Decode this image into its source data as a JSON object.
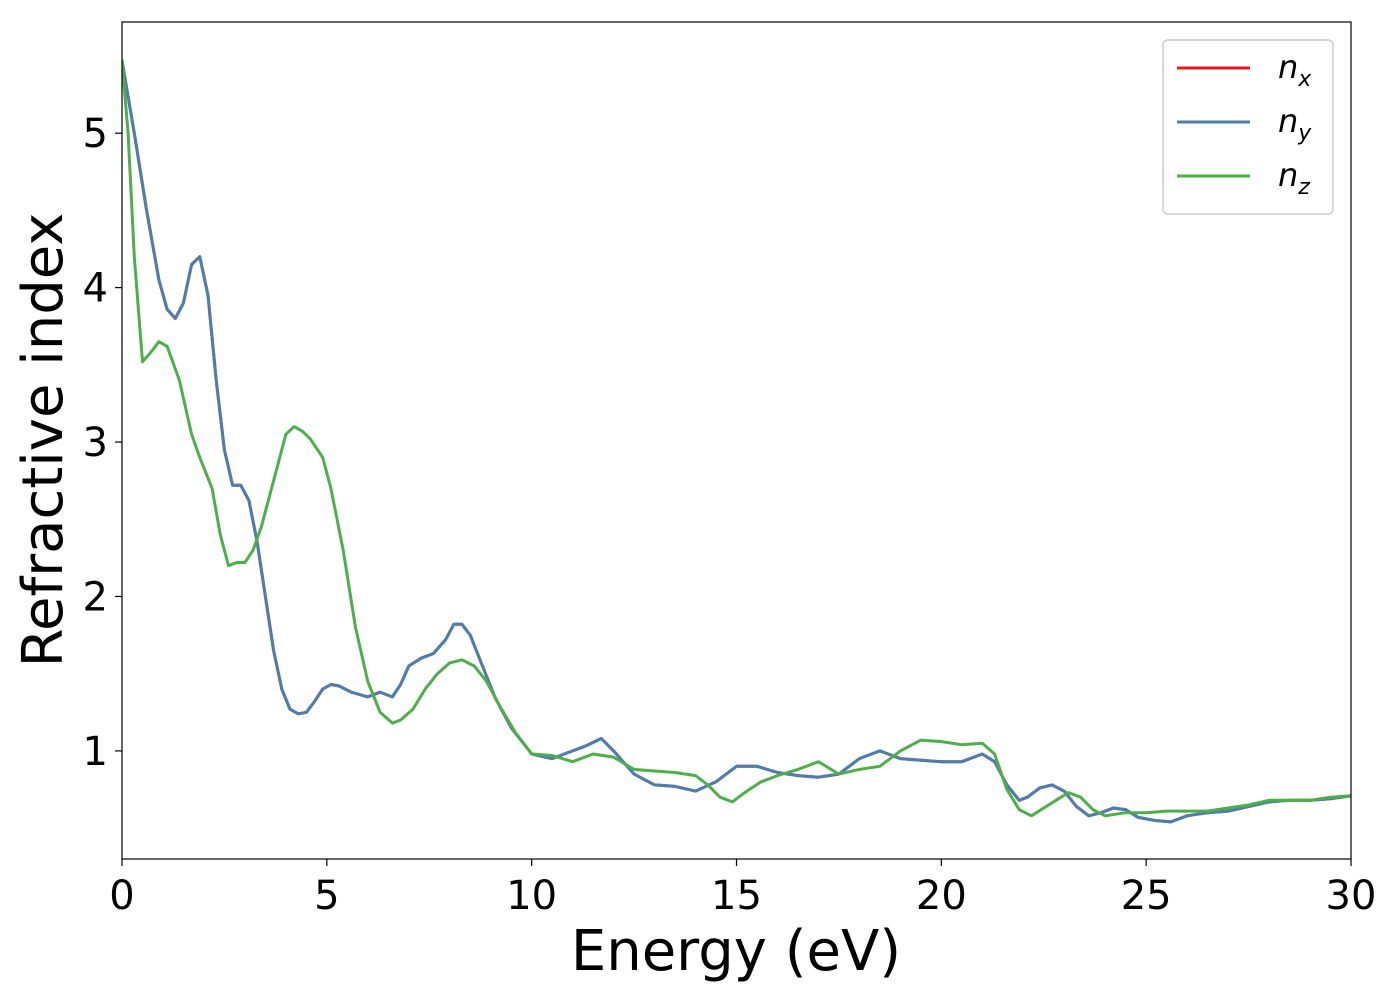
{
  "chart_data": {
    "type": "line",
    "xlabel": "Energy (eV)",
    "ylabel": "Refractive index",
    "xlim": [
      0,
      30
    ],
    "ylim": [
      0.3,
      5.72
    ],
    "xticks": [
      0,
      5,
      10,
      15,
      20,
      25,
      30
    ],
    "xtick_labels": [
      "0",
      "5",
      "10",
      "15",
      "20",
      "25",
      "30"
    ],
    "yticks": [
      1,
      2,
      3,
      4,
      5
    ],
    "ytick_labels": [
      "1",
      "2",
      "3",
      "4",
      "5"
    ],
    "grid": false,
    "legend_position": "top-right",
    "series": [
      {
        "name": "n",
        "subscript": "x",
        "color": "#e41a1c",
        "x": [
          0,
          0.3,
          0.6,
          0.9,
          1.1,
          1.3,
          1.5,
          1.7,
          1.9,
          2.1,
          2.3,
          2.5,
          2.7,
          2.9,
          3.1,
          3.3,
          3.5,
          3.7,
          3.9,
          4.1,
          4.3,
          4.5,
          4.7,
          4.9,
          5.1,
          5.3,
          5.6,
          6.0,
          6.3,
          6.6,
          6.8,
          7.0,
          7.3,
          7.6,
          7.9,
          8.1,
          8.3,
          8.5,
          8.8,
          9.1,
          9.5,
          10.0,
          10.5,
          11.0,
          11.3,
          11.7,
          12.0,
          12.5,
          13.0,
          13.5,
          14.0,
          14.5,
          15.0,
          15.5,
          16.0,
          16.5,
          17.0,
          17.5,
          18.0,
          18.5,
          19.0,
          19.5,
          20.0,
          20.5,
          21.0,
          21.3,
          21.6,
          21.9,
          22.1,
          22.4,
          22.7,
          23.0,
          23.3,
          23.6,
          23.9,
          24.2,
          24.5,
          24.8,
          25.2,
          25.6,
          26.0,
          26.5,
          27.0,
          27.5,
          28.0,
          28.5,
          29.0,
          29.5,
          30.0
        ],
        "y": [
          5.47,
          5.0,
          4.5,
          4.05,
          3.86,
          3.8,
          3.9,
          4.15,
          4.2,
          3.95,
          3.4,
          2.95,
          2.72,
          2.72,
          2.62,
          2.35,
          2.0,
          1.65,
          1.4,
          1.27,
          1.24,
          1.25,
          1.32,
          1.4,
          1.43,
          1.42,
          1.38,
          1.35,
          1.38,
          1.35,
          1.43,
          1.55,
          1.6,
          1.63,
          1.72,
          1.82,
          1.82,
          1.75,
          1.55,
          1.35,
          1.15,
          0.98,
          0.95,
          1.0,
          1.03,
          1.08,
          1.0,
          0.85,
          0.78,
          0.77,
          0.74,
          0.8,
          0.9,
          0.9,
          0.86,
          0.84,
          0.83,
          0.85,
          0.95,
          1.0,
          0.95,
          0.94,
          0.93,
          0.93,
          0.98,
          0.93,
          0.78,
          0.68,
          0.7,
          0.76,
          0.78,
          0.74,
          0.64,
          0.58,
          0.6,
          0.63,
          0.62,
          0.57,
          0.55,
          0.54,
          0.58,
          0.6,
          0.61,
          0.64,
          0.67,
          0.68,
          0.68,
          0.69,
          0.71
        ]
      },
      {
        "name": "n",
        "subscript": "y",
        "color": "#4a7fb0",
        "x": [
          0,
          0.3,
          0.6,
          0.9,
          1.1,
          1.3,
          1.5,
          1.7,
          1.9,
          2.1,
          2.3,
          2.5,
          2.7,
          2.9,
          3.1,
          3.3,
          3.5,
          3.7,
          3.9,
          4.1,
          4.3,
          4.5,
          4.7,
          4.9,
          5.1,
          5.3,
          5.6,
          6.0,
          6.3,
          6.6,
          6.8,
          7.0,
          7.3,
          7.6,
          7.9,
          8.1,
          8.3,
          8.5,
          8.8,
          9.1,
          9.5,
          10.0,
          10.5,
          11.0,
          11.3,
          11.7,
          12.0,
          12.5,
          13.0,
          13.5,
          14.0,
          14.5,
          15.0,
          15.5,
          16.0,
          16.5,
          17.0,
          17.5,
          18.0,
          18.5,
          19.0,
          19.5,
          20.0,
          20.5,
          21.0,
          21.3,
          21.6,
          21.9,
          22.1,
          22.4,
          22.7,
          23.0,
          23.3,
          23.6,
          23.9,
          24.2,
          24.5,
          24.8,
          25.2,
          25.6,
          26.0,
          26.5,
          27.0,
          27.5,
          28.0,
          28.5,
          29.0,
          29.5,
          30.0
        ],
        "y": [
          5.47,
          5.0,
          4.5,
          4.05,
          3.86,
          3.8,
          3.9,
          4.15,
          4.2,
          3.95,
          3.4,
          2.95,
          2.72,
          2.72,
          2.62,
          2.35,
          2.0,
          1.65,
          1.4,
          1.27,
          1.24,
          1.25,
          1.32,
          1.4,
          1.43,
          1.42,
          1.38,
          1.35,
          1.38,
          1.35,
          1.43,
          1.55,
          1.6,
          1.63,
          1.72,
          1.82,
          1.82,
          1.75,
          1.55,
          1.35,
          1.15,
          0.98,
          0.95,
          1.0,
          1.03,
          1.08,
          1.0,
          0.85,
          0.78,
          0.77,
          0.74,
          0.8,
          0.9,
          0.9,
          0.86,
          0.84,
          0.83,
          0.85,
          0.95,
          1.0,
          0.95,
          0.94,
          0.93,
          0.93,
          0.98,
          0.93,
          0.78,
          0.68,
          0.7,
          0.76,
          0.78,
          0.74,
          0.64,
          0.58,
          0.6,
          0.63,
          0.62,
          0.57,
          0.55,
          0.54,
          0.58,
          0.6,
          0.61,
          0.64,
          0.67,
          0.68,
          0.68,
          0.69,
          0.71
        ]
      },
      {
        "name": "n",
        "subscript": "z",
        "color": "#4daf4a",
        "x": [
          0,
          0.15,
          0.3,
          0.5,
          0.7,
          0.9,
          1.1,
          1.4,
          1.7,
          1.9,
          2.2,
          2.4,
          2.6,
          2.8,
          3.0,
          3.2,
          3.4,
          3.6,
          3.8,
          4.0,
          4.2,
          4.4,
          4.6,
          4.9,
          5.1,
          5.4,
          5.7,
          6.0,
          6.3,
          6.6,
          6.8,
          7.1,
          7.4,
          7.7,
          8.0,
          8.3,
          8.6,
          8.9,
          9.2,
          9.6,
          10.0,
          10.5,
          11.0,
          11.5,
          12.0,
          12.5,
          13.0,
          13.5,
          14.0,
          14.3,
          14.6,
          14.9,
          15.2,
          15.6,
          16.0,
          16.5,
          17.0,
          17.5,
          18.0,
          18.5,
          19.0,
          19.5,
          20.0,
          20.5,
          21.0,
          21.3,
          21.6,
          21.9,
          22.2,
          22.5,
          22.8,
          23.1,
          23.4,
          23.7,
          24.0,
          24.5,
          25.0,
          25.5,
          26.0,
          26.5,
          27.0,
          27.5,
          28.0,
          28.5,
          29.0,
          29.5,
          30.0
        ],
        "y": [
          5.47,
          5.0,
          4.2,
          3.52,
          3.58,
          3.65,
          3.62,
          3.4,
          3.05,
          2.9,
          2.7,
          2.4,
          2.2,
          2.22,
          2.22,
          2.3,
          2.45,
          2.65,
          2.85,
          3.05,
          3.1,
          3.07,
          3.02,
          2.9,
          2.7,
          2.3,
          1.8,
          1.45,
          1.25,
          1.18,
          1.2,
          1.27,
          1.4,
          1.5,
          1.57,
          1.59,
          1.55,
          1.45,
          1.3,
          1.12,
          0.98,
          0.97,
          0.93,
          0.98,
          0.96,
          0.88,
          0.87,
          0.86,
          0.84,
          0.78,
          0.7,
          0.67,
          0.73,
          0.8,
          0.84,
          0.88,
          0.93,
          0.85,
          0.88,
          0.9,
          1.0,
          1.07,
          1.06,
          1.04,
          1.05,
          0.98,
          0.75,
          0.62,
          0.58,
          0.63,
          0.68,
          0.73,
          0.7,
          0.62,
          0.58,
          0.6,
          0.6,
          0.61,
          0.61,
          0.61,
          0.63,
          0.65,
          0.68,
          0.68,
          0.68,
          0.7,
          0.71
        ]
      }
    ]
  }
}
